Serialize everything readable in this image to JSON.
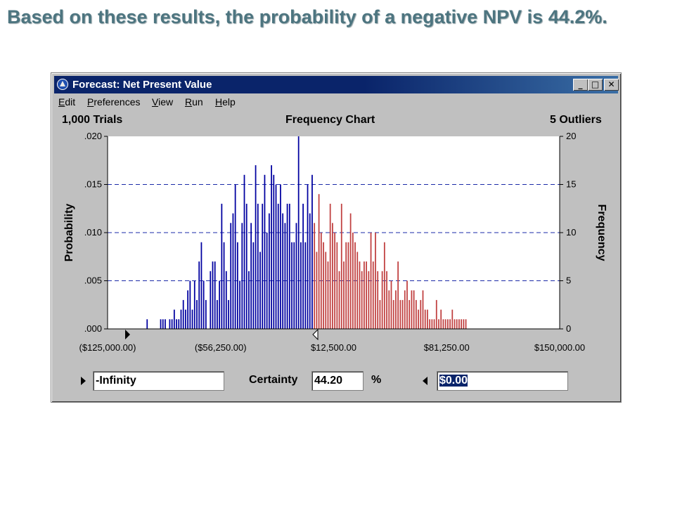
{
  "slide": {
    "title": "Based on these results, the probability of a negative NPV is 44.2%."
  },
  "window": {
    "title": "Forecast: Net Present Value",
    "buttons": {
      "minimize": "_",
      "maximize": "□",
      "close": "✕"
    }
  },
  "menu": {
    "items": [
      {
        "label": "Edit",
        "u": "E",
        "rest": "dit"
      },
      {
        "label": "Preferences",
        "u": "P",
        "rest": "references"
      },
      {
        "label": "View",
        "u": "V",
        "rest": "iew"
      },
      {
        "label": "Run",
        "u": "R",
        "rest": "un"
      },
      {
        "label": "Help",
        "u": "H",
        "rest": "elp"
      }
    ]
  },
  "header": {
    "trials": "1,000 Trials",
    "chart_title": "Frequency Chart",
    "outliers": "5 Outliers"
  },
  "controls": {
    "lower_value": "-Infinity",
    "certainty_label": "Certainty",
    "certainty_value": "44.20",
    "percent": "%",
    "upper_value": "$0.00"
  },
  "colors": {
    "negative_bars": "#0000a0",
    "positive_bars": "#c04040",
    "grid": "#1a2aa8"
  },
  "chart_data": {
    "type": "bar",
    "title": "Frequency Chart",
    "ylabel": "Probability",
    "y2label": "Frequency",
    "xlim": [
      -125000,
      150000
    ],
    "ylim": [
      0,
      0.02
    ],
    "y2lim": [
      0,
      20
    ],
    "x_ticks": [
      "($125,000.00)",
      "($56,250.00)",
      "$12,500.00",
      "$81,250.00",
      "$150,000.00"
    ],
    "y_ticks": [
      ".000",
      ".005",
      ".010",
      ".015",
      ".020"
    ],
    "y2_ticks": [
      "0",
      "5",
      "10",
      "15",
      "20"
    ],
    "gridlines": [
      5,
      10,
      15
    ],
    "certainty_boundary_x": 0,
    "bin_start": -125000,
    "bin_width": 1375,
    "frequencies": [
      0,
      0,
      0,
      0,
      0,
      0,
      0,
      0,
      0,
      0,
      0,
      0,
      0,
      0,
      0,
      0,
      0,
      1,
      0,
      0,
      0,
      0,
      0,
      1,
      1,
      1,
      0,
      1,
      1,
      2,
      1,
      1,
      2,
      3,
      2,
      4,
      5,
      2,
      5,
      3,
      7,
      9,
      5,
      3,
      0,
      6,
      7,
      7,
      3,
      5,
      13,
      9,
      6,
      3,
      11,
      12,
      15,
      9,
      5,
      11,
      16,
      13,
      6,
      11,
      9,
      17,
      13,
      8,
      13,
      16,
      10,
      12,
      17,
      16,
      15,
      13,
      15,
      12,
      11,
      13,
      13,
      9,
      9,
      11,
      20,
      9,
      13,
      9,
      15,
      12,
      16,
      11,
      8,
      14,
      10,
      9,
      8,
      7,
      13,
      11,
      10,
      9,
      6,
      13,
      7,
      9,
      9,
      12,
      10,
      9,
      8,
      7,
      6,
      7,
      7,
      6,
      10,
      7,
      10,
      6,
      3,
      6,
      9,
      6,
      4,
      5,
      3,
      4,
      7,
      3,
      3,
      4,
      5,
      3,
      4,
      4,
      3,
      2,
      3,
      4,
      2,
      2,
      1,
      1,
      1,
      3,
      1,
      2,
      1,
      1,
      1,
      1,
      2,
      1,
      1,
      1,
      1,
      1,
      1,
      0,
      0,
      0,
      0,
      0,
      0,
      0,
      0,
      0,
      0,
      0,
      0,
      0,
      0,
      0,
      0,
      0,
      0,
      0,
      0,
      0,
      0,
      0,
      0,
      0,
      0,
      0,
      0,
      0,
      0,
      0,
      0,
      0,
      0,
      0,
      0,
      0,
      0,
      0,
      0,
      0
    ]
  }
}
